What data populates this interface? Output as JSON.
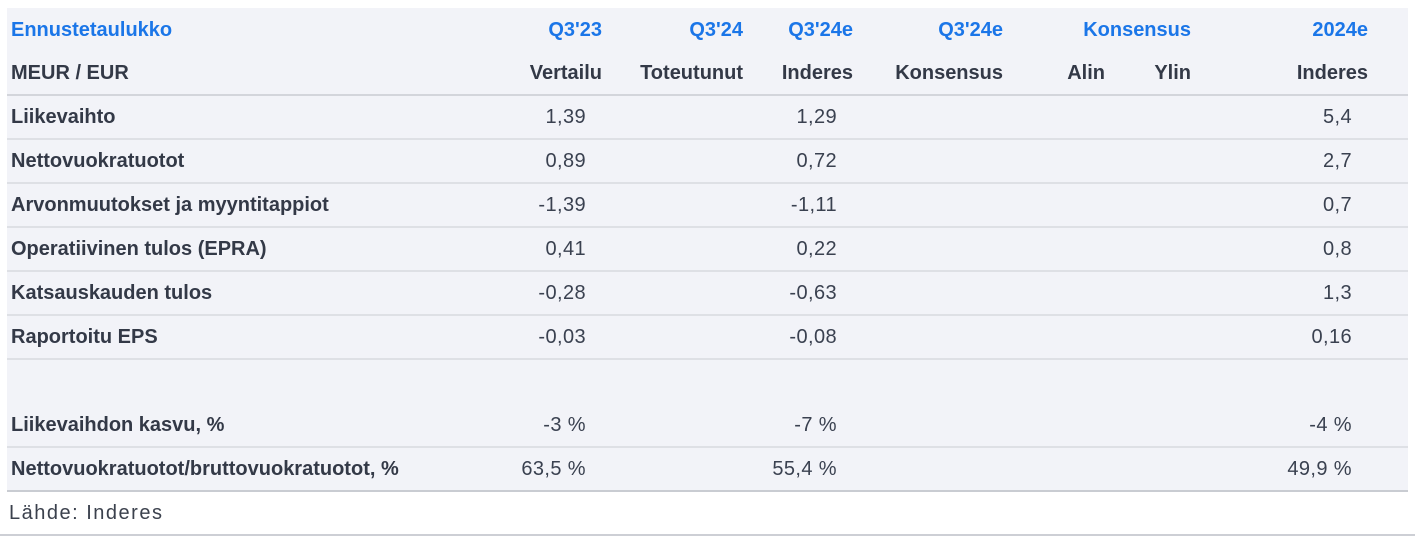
{
  "table": {
    "title": "Ennustetaulukko",
    "unit_label": "MEUR / EUR",
    "header_row1": [
      "Q3'23",
      "Q3'24",
      "Q3'24e",
      "Q3'24e",
      "Konsensus",
      "2024e"
    ],
    "header_row2": [
      "Vertailu",
      "Toteutunut",
      "Inderes",
      "Konsensus",
      "Alin",
      "Ylin",
      "Inderes"
    ],
    "rows": [
      {
        "label": "Liikevaihto",
        "values": [
          "1,39",
          "",
          "1,29",
          "",
          "",
          "",
          "5,4"
        ]
      },
      {
        "label": "Nettovuokratuotot",
        "values": [
          "0,89",
          "",
          "0,72",
          "",
          "",
          "",
          "2,7"
        ]
      },
      {
        "label": "Arvonmuutokset ja myyntitappiot",
        "values": [
          "-1,39",
          "",
          "-1,11",
          "",
          "",
          "",
          "0,7"
        ]
      },
      {
        "label": "Operatiivinen tulos (EPRA)",
        "values": [
          "0,41",
          "",
          "0,22",
          "",
          "",
          "",
          "0,8"
        ]
      },
      {
        "label": "Katsauskauden tulos",
        "values": [
          "-0,28",
          "",
          "-0,63",
          "",
          "",
          "",
          "1,3"
        ]
      },
      {
        "label": "Raportoitu EPS",
        "values": [
          "-0,03",
          "",
          "-0,08",
          "",
          "",
          "",
          "0,16"
        ]
      },
      {
        "label": "Liikevaihdon kasvu, %",
        "values": [
          "-3 %",
          "",
          "-7 %",
          "",
          "",
          "",
          "-4 %"
        ]
      },
      {
        "label": "Nettovuokratuotot/bruttovuokratuotot, %",
        "values": [
          "63,5 %",
          "",
          "55,4 %",
          "",
          "",
          "",
          "49,9 %"
        ]
      }
    ],
    "source": "Lähde: Inderes"
  },
  "colors": {
    "accent_blue": "#1b76e8",
    "text_dark": "#333947",
    "table_background": "#f2f3f8",
    "row_divider": "#dee0e5"
  }
}
